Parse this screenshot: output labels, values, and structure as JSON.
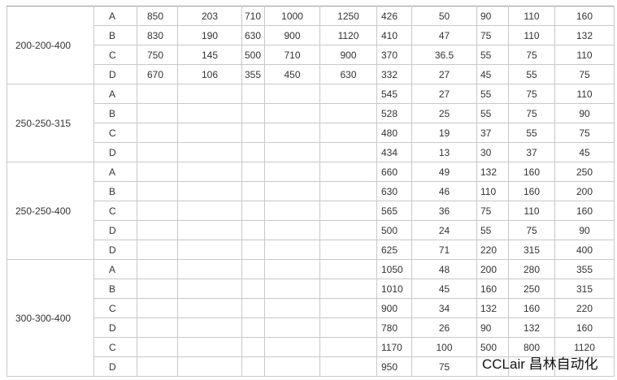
{
  "table": {
    "groups": [
      {
        "model": "200-200-400",
        "rows": [
          {
            "variant": "A",
            "cells": [
              "850",
              "203",
              "710",
              "1000",
              "1250",
              "426",
              "50",
              "90",
              "110",
              "160"
            ]
          },
          {
            "variant": "B",
            "cells": [
              "830",
              "190",
              "630",
              "900",
              "1120",
              "410",
              "47",
              "75",
              "110",
              "132"
            ]
          },
          {
            "variant": "C",
            "cells": [
              "750",
              "145",
              "500",
              "710",
              "900",
              "370",
              "36.5",
              "55",
              "75",
              "110"
            ]
          },
          {
            "variant": "D",
            "cells": [
              "670",
              "106",
              "355",
              "450",
              "630",
              "332",
              "27",
              "45",
              "55",
              "75"
            ]
          }
        ]
      },
      {
        "model": "250-250-315",
        "rows": [
          {
            "variant": "A",
            "cells": [
              null,
              null,
              null,
              null,
              null,
              "545",
              "27",
              "55",
              "75",
              "110"
            ]
          },
          {
            "variant": "B",
            "cells": [
              null,
              null,
              null,
              null,
              null,
              "528",
              "25",
              "55",
              "75",
              "90"
            ]
          },
          {
            "variant": "C",
            "cells": [
              null,
              null,
              null,
              null,
              null,
              "480",
              "19",
              "37",
              "55",
              "75"
            ]
          },
          {
            "variant": "D",
            "cells": [
              null,
              null,
              null,
              null,
              null,
              "434",
              "13",
              "30",
              "37",
              "45"
            ]
          }
        ]
      },
      {
        "model": "250-250-400",
        "rows": [
          {
            "variant": "A",
            "cells": [
              null,
              null,
              null,
              null,
              null,
              "660",
              "49",
              "132",
              "160",
              "250"
            ]
          },
          {
            "variant": "B",
            "cells": [
              null,
              null,
              null,
              null,
              null,
              "630",
              "46",
              "110",
              "160",
              "200"
            ]
          },
          {
            "variant": "C",
            "cells": [
              null,
              null,
              null,
              null,
              null,
              "565",
              "36",
              "75",
              "110",
              "160"
            ]
          },
          {
            "variant": "D",
            "cells": [
              null,
              null,
              null,
              null,
              null,
              "500",
              "24",
              "55",
              "75",
              "90"
            ]
          },
          {
            "variant": "D",
            "cells": [
              null,
              null,
              null,
              null,
              null,
              "625",
              "71",
              "220",
              "315",
              "400"
            ]
          }
        ]
      },
      {
        "model": "300-300-400",
        "rows": [
          {
            "variant": "A",
            "cells": [
              null,
              null,
              null,
              null,
              null,
              "1050",
              "48",
              "200",
              "280",
              "355"
            ]
          },
          {
            "variant": "B",
            "cells": [
              null,
              null,
              null,
              null,
              null,
              "1010",
              "45",
              "160",
              "250",
              "315"
            ]
          },
          {
            "variant": "C",
            "cells": [
              null,
              null,
              null,
              null,
              null,
              "900",
              "34",
              "132",
              "160",
              "220"
            ]
          },
          {
            "variant": "D",
            "cells": [
              null,
              null,
              null,
              null,
              null,
              "780",
              "26",
              "90",
              "132",
              "160"
            ]
          },
          {
            "variant": "C",
            "cells": [
              null,
              null,
              null,
              null,
              null,
              "1170",
              "100",
              "500",
              "800",
              "1120"
            ]
          },
          {
            "variant": "D",
            "cells": [
              null,
              null,
              null,
              null,
              null,
              "950",
              "75",
              null,
              null,
              null
            ]
          }
        ]
      }
    ]
  },
  "watermark": "CCLair 昌林自动化"
}
